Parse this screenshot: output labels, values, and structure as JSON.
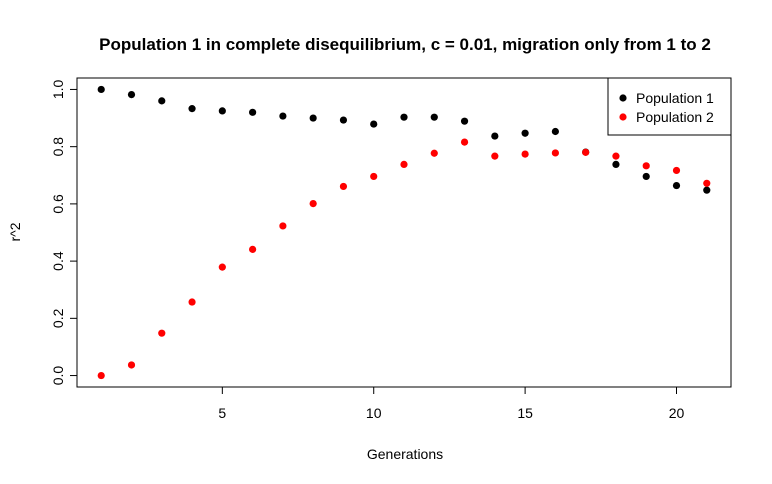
{
  "chart_data": {
    "type": "scatter",
    "title": "Population 1 in complete disequilibrium, c = 0.01, migration only from 1 to 2",
    "xlabel": "Generations",
    "ylabel": "r^2",
    "xlim": [
      0.2,
      21.8
    ],
    "ylim": [
      -0.04,
      1.04
    ],
    "x_ticks": [
      5,
      10,
      15,
      20
    ],
    "y_ticks": [
      0.0,
      0.2,
      0.4,
      0.6,
      0.8,
      1.0
    ],
    "x_tick_labels": [
      "5",
      "10",
      "15",
      "20"
    ],
    "y_tick_labels": [
      "0.0",
      "0.2",
      "0.4",
      "0.6",
      "0.8",
      "1.0"
    ],
    "grid": false,
    "legend_position": "top-right",
    "x": [
      1,
      2,
      3,
      4,
      5,
      6,
      7,
      8,
      9,
      10,
      11,
      12,
      13,
      14,
      15,
      16,
      17,
      18,
      19,
      20,
      21
    ],
    "series": [
      {
        "name": "Population 1",
        "color": "#000000",
        "values": [
          1.0,
          0.982,
          0.96,
          0.933,
          0.925,
          0.92,
          0.907,
          0.9,
          0.893,
          0.879,
          0.903,
          0.903,
          0.889,
          0.837,
          0.847,
          0.853,
          0.781,
          0.738,
          0.696,
          0.664,
          0.648
        ]
      },
      {
        "name": "Population 2",
        "color": "#ff0000",
        "values": [
          0.0,
          0.037,
          0.148,
          0.257,
          0.379,
          0.441,
          0.523,
          0.601,
          0.661,
          0.696,
          0.738,
          0.777,
          0.816,
          0.767,
          0.774,
          0.778,
          0.78,
          0.767,
          0.733,
          0.717,
          0.672
        ]
      }
    ]
  }
}
